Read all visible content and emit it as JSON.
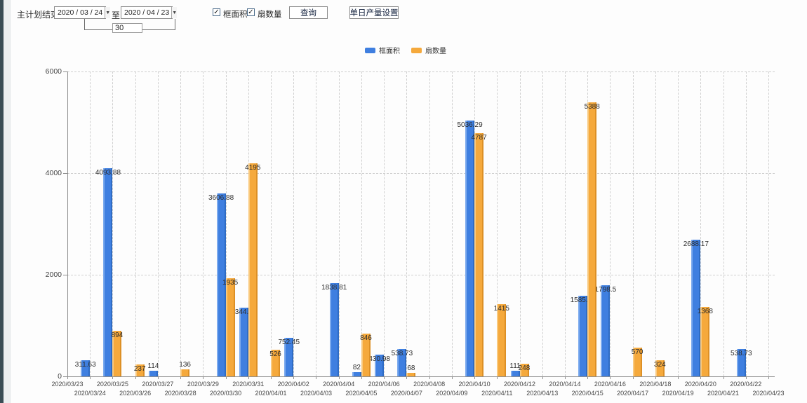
{
  "toolbar": {
    "range_label": "主计划结束时间:",
    "start_date": "2020 / 03 / 24",
    "to_label": "至:",
    "end_date": "2020 / 04 / 23",
    "day_span": "30",
    "checkbox_frame_area_label": "框面积",
    "checkbox_sash_count_label": "扇数量",
    "query_button_label": "查询",
    "daily_output_button_label": "单日产量设置",
    "dropdown_glyph": "▼",
    "check_glyph": "✓"
  },
  "legend": {
    "series1_label": "框面积",
    "series2_label": "扇数量"
  },
  "colors": {
    "frame_area_blue": "#3f7fe0",
    "sash_count_orange": "#f5a93c",
    "edge_strip": "#3a4d55"
  },
  "chart_data": {
    "type": "bar",
    "title": "",
    "xlabel": "",
    "ylabel": "",
    "ylim": [
      0,
      6000
    ],
    "yticks": [
      0,
      2000,
      4000,
      6000
    ],
    "grid": true,
    "legend_position": "top",
    "categories": [
      "2020/03/23",
      "2020/03/24",
      "2020/03/25",
      "2020/03/26",
      "2020/03/27",
      "2020/03/28",
      "2020/03/29",
      "2020/03/30",
      "2020/03/31",
      "2020/04/01",
      "2020/04/02",
      "2020/04/03",
      "2020/04/04",
      "2020/04/05",
      "2020/04/06",
      "2020/04/07",
      "2020/04/08",
      "2020/04/09",
      "2020/04/10",
      "2020/04/11",
      "2020/04/12",
      "2020/04/13",
      "2020/04/14",
      "2020/04/15",
      "2020/04/16",
      "2020/04/17",
      "2020/04/18",
      "2020/04/19",
      "2020/04/20",
      "2020/04/21",
      "2020/04/22",
      "2020/04/23"
    ],
    "series": [
      {
        "name": "框面积",
        "color": "#3f7fe0",
        "values": [
          null,
          311.63,
          4093.88,
          null,
          114,
          null,
          null,
          3606.88,
          1344.95,
          null,
          752.45,
          null,
          1838.81,
          82,
          430.98,
          538.73,
          null,
          null,
          5036.29,
          null,
          111,
          null,
          null,
          1585.96,
          1798.5,
          null,
          null,
          null,
          2688.17,
          null,
          538.73,
          null
        ]
      },
      {
        "name": "扇数量",
        "color": "#f5a93c",
        "values": [
          null,
          null,
          894,
          237,
          null,
          136,
          null,
          1935,
          4195,
          526,
          null,
          null,
          null,
          846,
          null,
          68,
          null,
          null,
          4787,
          1415,
          248,
          null,
          null,
          5388,
          null,
          570,
          324,
          null,
          1368,
          null,
          null,
          null
        ]
      }
    ]
  }
}
